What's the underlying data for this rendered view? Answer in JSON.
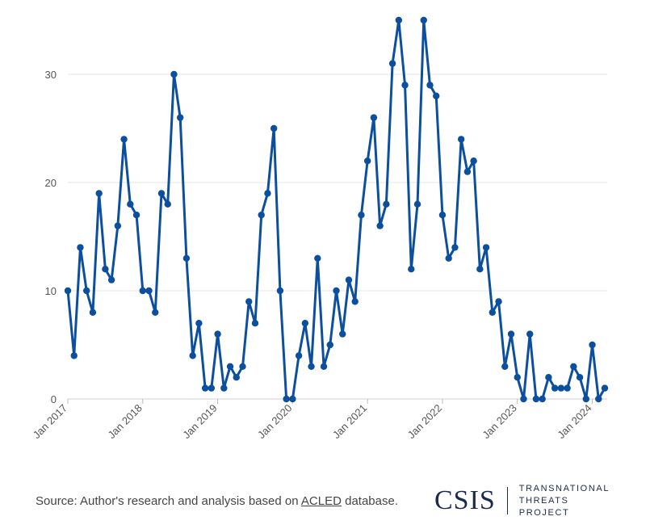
{
  "chart_data": {
    "type": "line",
    "title": "",
    "xlabel": "",
    "ylabel": "",
    "ylim": [
      0,
      35
    ],
    "yticks": [
      0,
      10,
      20,
      30
    ],
    "grid": true,
    "color": "#0b4f9e",
    "x_start": "Jan 2017",
    "x_tick_labels": [
      "Jan 2017",
      "Jan 2018",
      "Jan 2019",
      "Jan 2020",
      "Jan 2021",
      "Jan 2022",
      "Jan 2023",
      "Jan 2024"
    ],
    "series": [
      {
        "values": [
          10,
          4,
          14,
          10,
          8,
          19,
          12,
          11,
          16,
          24,
          18,
          17,
          10,
          10,
          8,
          19,
          18,
          30,
          26,
          13,
          4,
          7,
          1,
          1,
          6,
          1,
          3,
          2,
          3,
          9,
          7,
          17,
          19,
          25,
          10,
          0,
          0,
          4,
          7,
          3,
          13,
          3,
          5,
          10,
          6,
          11,
          9,
          17,
          22,
          26,
          16,
          18,
          31,
          35,
          29,
          12,
          18,
          35,
          29,
          28,
          17,
          13,
          14,
          24,
          21,
          22,
          12,
          14,
          8,
          9,
          3,
          6,
          2,
          0,
          6,
          0,
          0,
          2,
          1,
          1,
          1,
          3,
          2,
          0,
          5,
          0,
          1
        ]
      }
    ]
  },
  "footer": {
    "source_prefix": "Source: Author's research and analysis based on ",
    "source_link": "ACLED",
    "source_suffix": " database.",
    "logo_mark": "CSIS",
    "logo_line1": "TRANSNATIONAL",
    "logo_line2": "THREATS PROJECT"
  }
}
